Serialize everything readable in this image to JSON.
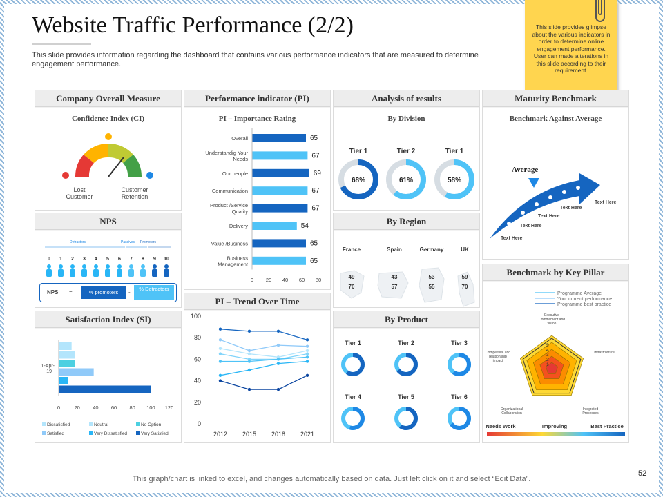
{
  "header": {
    "title": "Website Traffic Performance (2/2)",
    "subtitle": "This slide provides information regarding the dashboard that contains various performance indicators that are measured to determine engagement performance.",
    "note": "This slide provides glimpse about the various indicators in order to determine online engagement performance. User can made alterations in this slide according to their requirement."
  },
  "panels": {
    "company": {
      "title": "Company Overall Measure",
      "subtitle": "Confidence Index (CI)",
      "left_label": "Lost Customer",
      "right_label": "Customer Retention"
    },
    "nps": {
      "title": "NPS",
      "detractors": "Detractors",
      "passives": "Passives",
      "promoters": "Promoters",
      "scale": [
        "0",
        "1",
        "2",
        "3",
        "4",
        "5",
        "6",
        "7",
        "8",
        "9",
        "10"
      ],
      "formula_nps": "NPS",
      "formula_eq": "=",
      "formula_promoters": "% promoters",
      "formula_minus": "-",
      "formula_detractors": "% Detractors"
    },
    "satisfaction": {
      "title": "Satisfaction Index (SI)",
      "category": "1-Apr-19",
      "x_ticks": [
        "0",
        "20",
        "40",
        "60",
        "80",
        "100",
        "120"
      ],
      "legend": [
        "Dissatisfied",
        "Neutral",
        "No Option",
        "Satisfied",
        "Very Dissatisfied",
        "Very Satisfied"
      ]
    },
    "pi": {
      "title": "Performance indicator (PI)",
      "subtitle": "PI – Importance Rating",
      "x_ticks": [
        "0",
        "20",
        "40",
        "60",
        "80"
      ]
    },
    "trend": {
      "title": "PI – Trend Over Time",
      "y_ticks": [
        "100",
        "80",
        "60",
        "40",
        "20",
        "0"
      ],
      "x_ticks": [
        "2012",
        "2015",
        "2018",
        "2021"
      ]
    },
    "analysis": {
      "title": "Analysis of results",
      "subtitle": "By Division",
      "tiers": [
        {
          "label": "Tier 1",
          "value": "68%"
        },
        {
          "label": "Tier 2",
          "value": "61%"
        },
        {
          "label": "Tier 1",
          "value": "58%"
        }
      ]
    },
    "region": {
      "title": "By Region",
      "countries": [
        {
          "name": "France",
          "v1": "49",
          "v2": "70"
        },
        {
          "name": "Spain",
          "v1": "43",
          "v2": "57"
        },
        {
          "name": "Germany",
          "v1": "53",
          "v2": "55"
        },
        {
          "name": "UK",
          "v1": "59",
          "v2": "70"
        }
      ]
    },
    "product": {
      "title": "By Product",
      "tiers": [
        "Tier 1",
        "Tier 2",
        "Tier 3",
        "Tier 4",
        "Tier 5",
        "Tier 6"
      ]
    },
    "maturity": {
      "title": "Maturity Benchmark",
      "subtitle": "Benchmark Against Average",
      "average": "Average",
      "labels": [
        "Text Here",
        "Text Here",
        "Text Here",
        "Text Here",
        "Text Here"
      ]
    },
    "pillar": {
      "title": "Benchmark by Key Pillar",
      "legend": [
        "Programme Average",
        "Your current performance",
        "Programme best practice"
      ],
      "axes": [
        "Executive Commitment and vision",
        "Infrastructure",
        "Integrated Processes",
        "Organizational Collaboration",
        "Competitive and relationship impact"
      ],
      "scale": [
        "5",
        "4",
        "3",
        "2",
        "1"
      ],
      "bottom": [
        "Needs Work",
        "Improving",
        "Best Practice"
      ]
    }
  },
  "chart_data": [
    {
      "type": "bar",
      "title": "PI – Importance Rating",
      "orientation": "horizontal",
      "categories": [
        "Overall",
        "Understandig Your Needs",
        "Our people",
        "Communication",
        "Product /Service Quality",
        "Delivery",
        "Value /Business",
        "Business Management"
      ],
      "values": [
        65,
        67,
        69,
        67,
        67,
        54,
        65,
        65
      ],
      "xlim": [
        0,
        80
      ]
    },
    {
      "type": "bar",
      "title": "Satisfaction Index (SI)",
      "orientation": "horizontal",
      "categories": [
        "1-Apr-19"
      ],
      "series": [
        {
          "name": "Very Satisfied",
          "values": [
            100
          ]
        },
        {
          "name": "Very Dissatisfied",
          "values": [
            10
          ]
        },
        {
          "name": "Dissatisfied",
          "values": [
            38
          ]
        },
        {
          "name": "Satisfied",
          "values": [
            18
          ]
        },
        {
          "name": "Neutral",
          "values": [
            18
          ]
        },
        {
          "name": "No Option",
          "values": [
            14
          ]
        }
      ],
      "xlim": [
        0,
        120
      ]
    },
    {
      "type": "line",
      "title": "PI – Trend Over Time",
      "x": [
        "2012",
        "2015",
        "2018",
        "2021"
      ],
      "series": [
        {
          "name": "Series 1",
          "values": [
            88,
            86,
            86,
            78
          ]
        },
        {
          "name": "Series 2",
          "values": [
            78,
            68,
            73,
            72
          ]
        },
        {
          "name": "Series 3",
          "values": [
            70,
            65,
            62,
            68
          ]
        },
        {
          "name": "Series 4",
          "values": [
            65,
            60,
            60,
            65
          ]
        },
        {
          "name": "Series 5",
          "values": [
            58,
            58,
            60,
            62
          ]
        },
        {
          "name": "Series 6",
          "values": [
            45,
            50,
            56,
            58
          ]
        },
        {
          "name": "Series 7",
          "values": [
            40,
            32,
            32,
            45
          ]
        }
      ],
      "ylim": [
        0,
        100
      ]
    },
    {
      "type": "pie",
      "title": "By Division",
      "categories": [
        "Tier 1",
        "Tier 2",
        "Tier 1"
      ],
      "values": [
        68,
        61,
        58
      ]
    },
    {
      "type": "pie",
      "title": "By Product",
      "categories": [
        "Tier 1",
        "Tier 2",
        "Tier 3",
        "Tier 4",
        "Tier 5",
        "Tier 6"
      ],
      "values": [
        60,
        65,
        60,
        55,
        60,
        65
      ]
    }
  ],
  "footer": {
    "text": "This graph/chart is linked to excel, and changes automatically based on data. Just left click on it and select “Edit Data”.",
    "page": "52"
  },
  "colors": {
    "dark_blue": "#1565c0",
    "mid_blue": "#1e88e5",
    "light_blue": "#4fc3f7",
    "pale_blue": "#b3e5fc",
    "note_yellow": "#ffd54f"
  }
}
